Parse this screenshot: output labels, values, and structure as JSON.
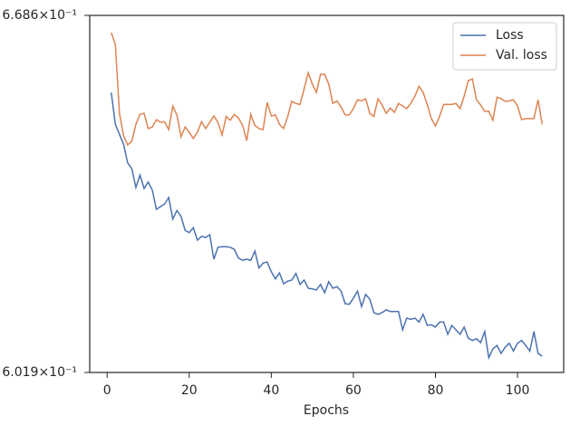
{
  "chart_data": {
    "type": "line",
    "xlabel": "Epochs",
    "x": [
      1,
      2,
      3,
      4,
      5,
      6,
      7,
      8,
      9,
      10,
      11,
      12,
      13,
      14,
      15,
      16,
      17,
      18,
      19,
      20,
      21,
      22,
      23,
      24,
      25,
      26,
      27,
      28,
      29,
      30,
      31,
      32,
      33,
      34,
      35,
      36,
      37,
      38,
      39,
      40,
      41,
      42,
      43,
      44,
      45,
      46,
      47,
      48,
      49,
      50,
      51,
      52,
      53,
      54,
      55,
      56,
      57,
      58,
      59,
      60,
      61,
      62,
      63,
      64,
      65,
      66,
      67,
      68,
      69,
      70,
      71,
      72,
      73,
      74,
      75,
      76,
      77,
      78,
      79,
      80,
      81,
      82,
      83,
      84,
      85,
      86,
      87,
      88,
      89,
      90,
      91,
      92,
      93,
      94,
      95,
      96,
      97,
      98,
      99,
      100,
      101,
      102,
      103,
      104,
      105,
      106
    ],
    "series": [
      {
        "name": "Loss",
        "color": "#4c72b0",
        "values": [
          0.6536,
          0.6475,
          0.6456,
          0.6437,
          0.6402,
          0.6391,
          0.6356,
          0.6379,
          0.6354,
          0.6366,
          0.6351,
          0.6315,
          0.632,
          0.6325,
          0.6337,
          0.6297,
          0.6313,
          0.6302,
          0.6276,
          0.6272,
          0.6281,
          0.6258,
          0.6265,
          0.6263,
          0.6268,
          0.6223,
          0.6245,
          0.6246,
          0.6246,
          0.6245,
          0.6241,
          0.6225,
          0.6221,
          0.6223,
          0.6221,
          0.6238,
          0.6207,
          0.6216,
          0.6218,
          0.62,
          0.6187,
          0.6198,
          0.6178,
          0.6183,
          0.6185,
          0.6197,
          0.6177,
          0.6185,
          0.617,
          0.6169,
          0.6167,
          0.6177,
          0.6162,
          0.6182,
          0.617,
          0.6173,
          0.6165,
          0.6142,
          0.6141,
          0.6152,
          0.6165,
          0.6137,
          0.6159,
          0.615,
          0.6126,
          0.6123,
          0.6126,
          0.6131,
          0.6128,
          0.6128,
          0.6128,
          0.6095,
          0.6116,
          0.6114,
          0.6116,
          0.6109,
          0.6123,
          0.6103,
          0.6104,
          0.61,
          0.6109,
          0.6109,
          0.6087,
          0.6103,
          0.6095,
          0.6087,
          0.61,
          0.608,
          0.6076,
          0.6079,
          0.6072,
          0.6092,
          0.6045,
          0.6061,
          0.6067,
          0.6053,
          0.6064,
          0.6071,
          0.6057,
          0.6071,
          0.6076,
          0.6067,
          0.6057,
          0.6092,
          0.6053,
          0.6048
        ]
      },
      {
        "name": "Val. loss",
        "color": "#dd8452",
        "values": [
          0.6652,
          0.6629,
          0.6496,
          0.6453,
          0.6436,
          0.6443,
          0.6475,
          0.6494,
          0.6496,
          0.6467,
          0.647,
          0.6484,
          0.6479,
          0.648,
          0.6465,
          0.651,
          0.6493,
          0.6451,
          0.647,
          0.646,
          0.6448,
          0.646,
          0.648,
          0.6467,
          0.6479,
          0.6491,
          0.6479,
          0.6455,
          0.649,
          0.6483,
          0.6494,
          0.6487,
          0.6473,
          0.6444,
          0.6494,
          0.6473,
          0.6467,
          0.6465,
          0.6517,
          0.6491,
          0.6493,
          0.6475,
          0.6467,
          0.649,
          0.6519,
          0.6515,
          0.6513,
          0.6543,
          0.6574,
          0.6552,
          0.6536,
          0.6571,
          0.6571,
          0.6552,
          0.6515,
          0.652,
          0.6508,
          0.6493,
          0.6493,
          0.6505,
          0.6522,
          0.652,
          0.6524,
          0.6496,
          0.649,
          0.6524,
          0.6512,
          0.6496,
          0.6506,
          0.6498,
          0.6515,
          0.651,
          0.6505,
          0.6515,
          0.6529,
          0.6548,
          0.6536,
          0.6513,
          0.6486,
          0.6472,
          0.649,
          0.6513,
          0.6513,
          0.6513,
          0.6515,
          0.6505,
          0.6529,
          0.6559,
          0.6562,
          0.6522,
          0.6512,
          0.65,
          0.65,
          0.6483,
          0.6527,
          0.6524,
          0.6519,
          0.652,
          0.6522,
          0.651,
          0.6484,
          0.6486,
          0.6486,
          0.6486,
          0.6522,
          0.6475
        ]
      }
    ],
    "xlim": [
      -4.25,
      111.25
    ],
    "xticks": [
      0,
      20,
      40,
      60,
      80,
      100
    ],
    "ylim": [
      0.6019,
      0.6686
    ],
    "log_y": true,
    "yticks": [
      {
        "value": 0.6019,
        "label": "6.019×10⁻¹"
      },
      {
        "value": 0.6686,
        "label": "6.686×10⁻¹"
      }
    ],
    "legend": "upper right"
  }
}
